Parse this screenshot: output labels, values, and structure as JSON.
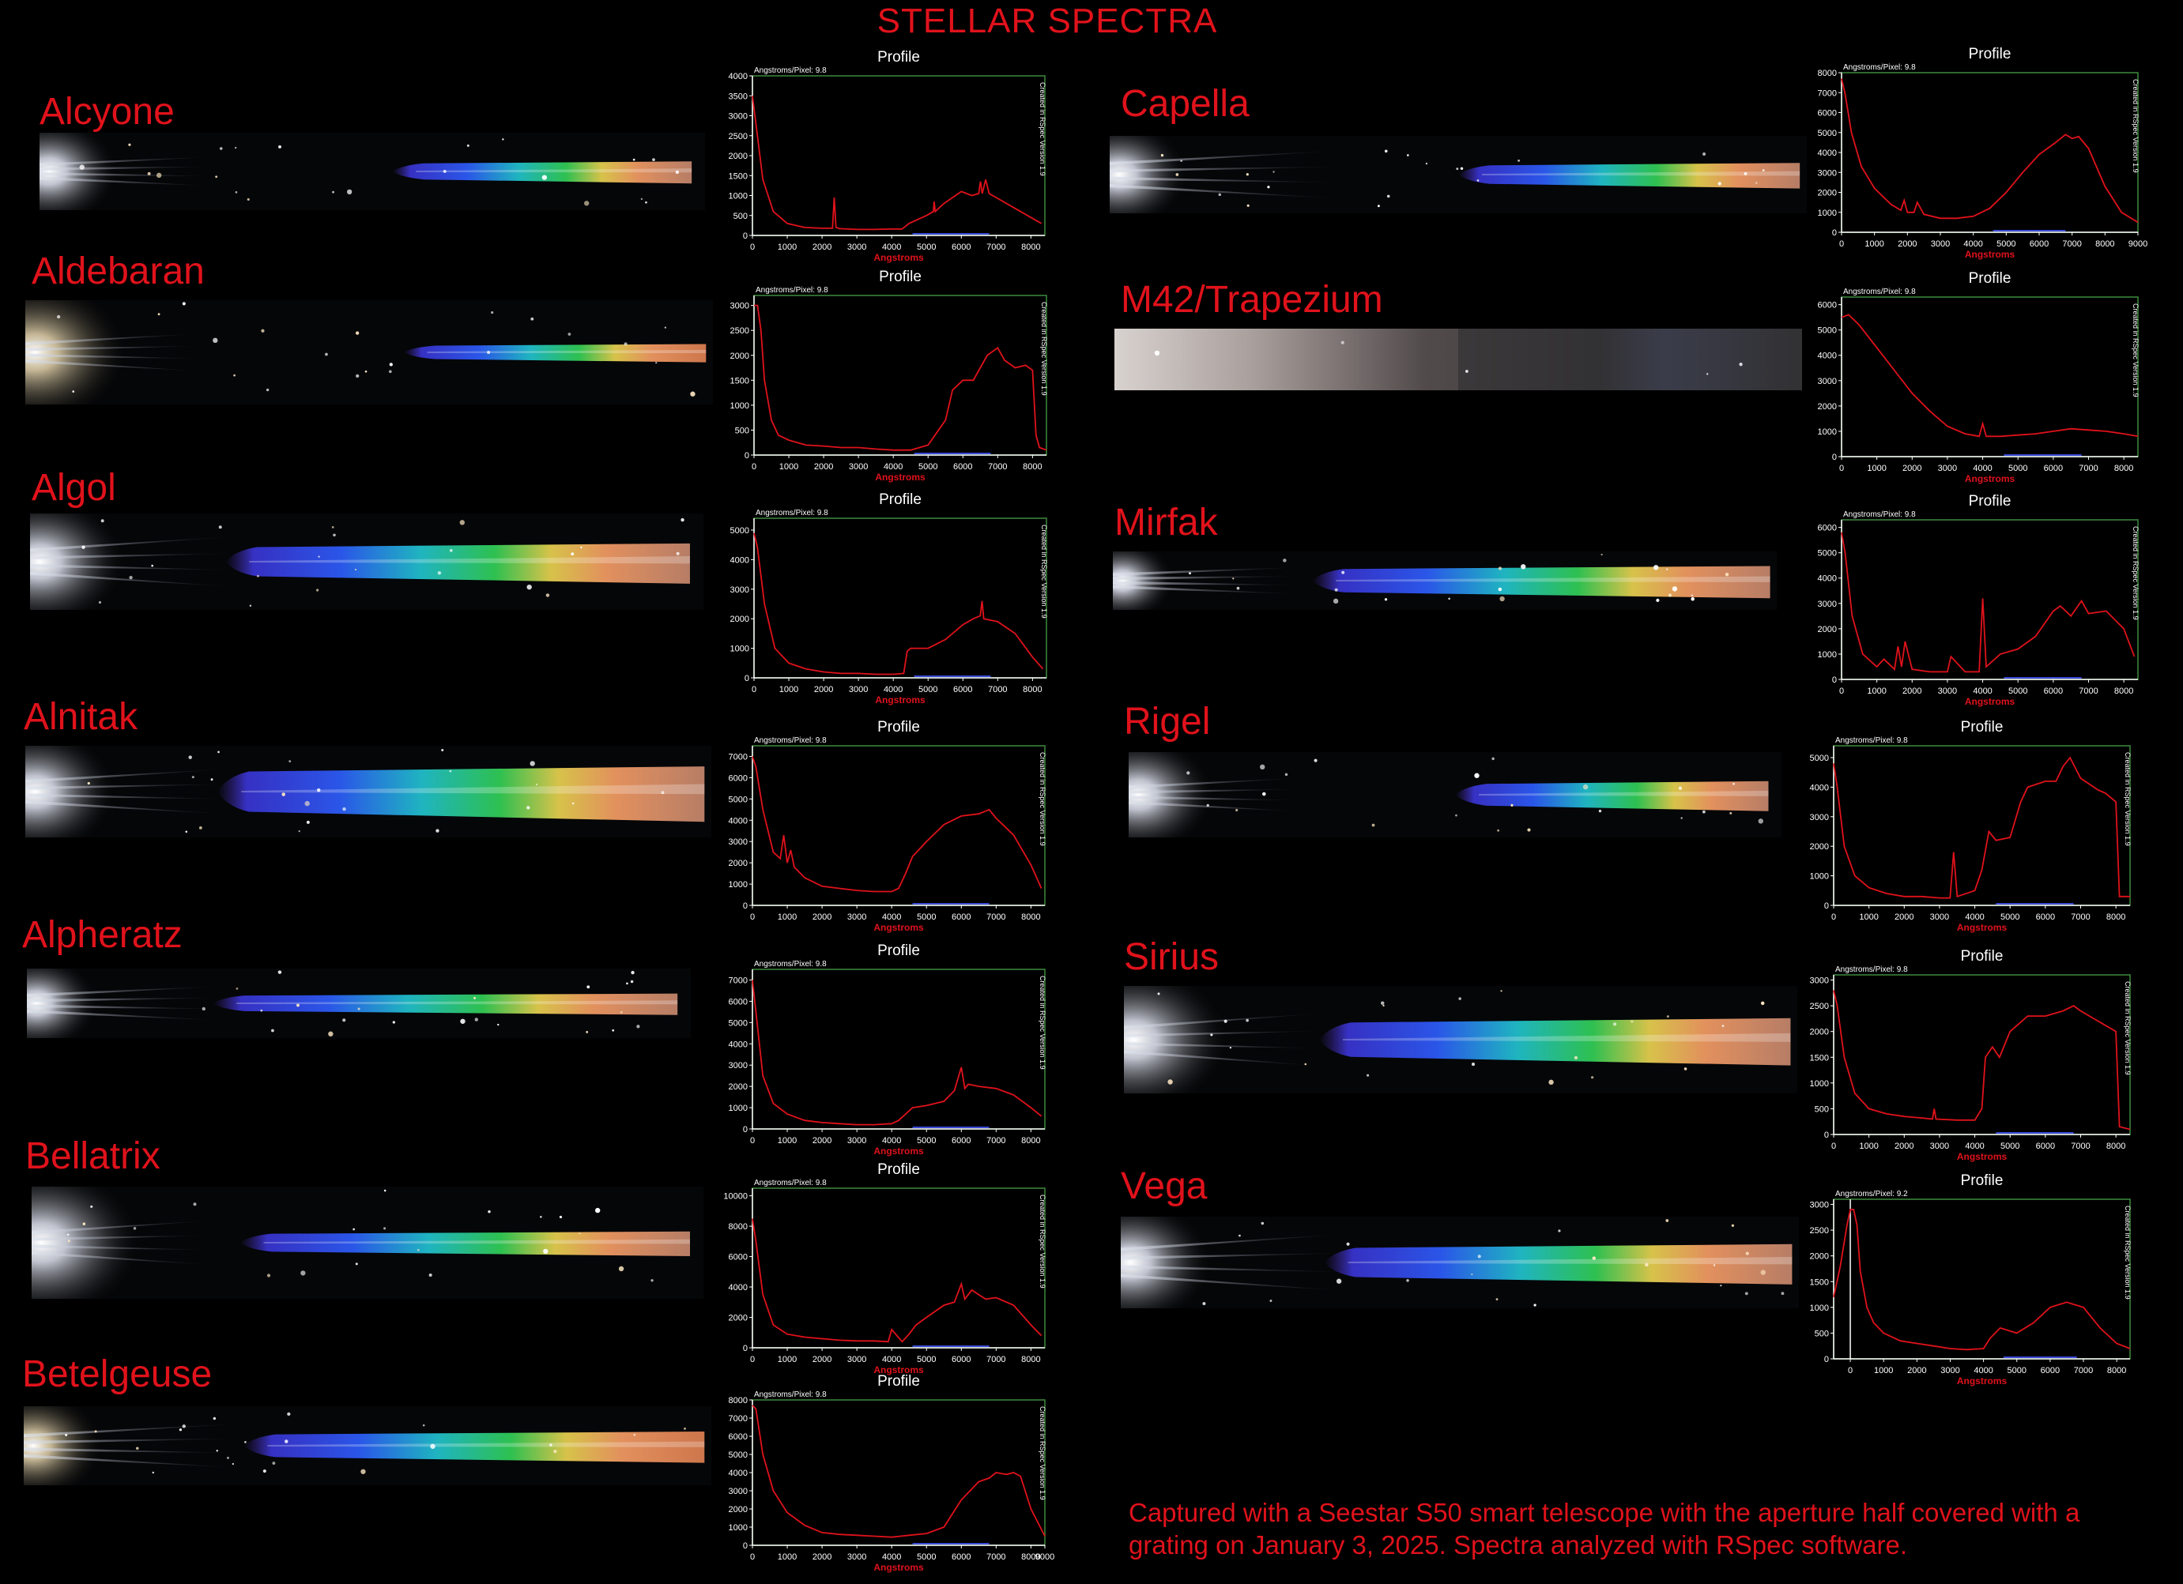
{
  "title": "STELLAR SPECTRA",
  "footer": "Captured with a Seestar S50 smart telescope with the aperture half covered with a grating on January 3, 2025. Spectra analyzed with RSpec software.",
  "colors": {
    "accent": "#e0121b",
    "trace": "#e0121b",
    "frame": "#3d8a3d",
    "axis": "#ffffff"
  },
  "profile_labels": {
    "heading": "Profile",
    "xlabel": "Angstroms",
    "side_note": "Created in RSpec Version 1.9"
  },
  "chart_data": [
    {
      "type": "line",
      "name": "Alcyone",
      "ap": "Angstroms/Pixel: 9.8",
      "xlim": [
        0,
        8400
      ],
      "xticks": [
        0,
        1000,
        2000,
        3000,
        4000,
        5000,
        6000,
        7000,
        8000
      ],
      "ylim": [
        0,
        4000
      ],
      "yticks": [
        0,
        500,
        1000,
        1500,
        2000,
        2500,
        3000,
        3500,
        4000
      ],
      "x": [
        0,
        100,
        300,
        600,
        1000,
        1500,
        2000,
        2300,
        2350,
        2400,
        2500,
        3000,
        3500,
        4000,
        4300,
        4500,
        5000,
        5200,
        5220,
        5250,
        5500,
        6000,
        6300,
        6500,
        6550,
        6600,
        6700,
        6800,
        7000,
        7500,
        8000,
        8300
      ],
      "y": [
        3500,
        2800,
        1400,
        600,
        300,
        200,
        180,
        180,
        950,
        200,
        170,
        150,
        150,
        160,
        160,
        300,
        500,
        600,
        850,
        600,
        800,
        1100,
        1000,
        1050,
        1350,
        1050,
        1400,
        1050,
        950,
        700,
        450,
        300
      ]
    },
    {
      "type": "line",
      "name": "Aldebaran",
      "ap": "Angstroms/Pixel: 9.8",
      "xlim": [
        0,
        8400
      ],
      "xticks": [
        0,
        1000,
        2000,
        3000,
        4000,
        5000,
        6000,
        7000,
        8000
      ],
      "ylim": [
        0,
        3200
      ],
      "yticks": [
        0,
        500,
        1000,
        1500,
        2000,
        2500,
        3000
      ],
      "x": [
        0,
        100,
        200,
        300,
        500,
        700,
        1000,
        1500,
        2000,
        2500,
        3000,
        3500,
        4000,
        4500,
        5000,
        5200,
        5500,
        5700,
        6000,
        6300,
        6500,
        6700,
        7000,
        7200,
        7500,
        7800,
        8000,
        8100,
        8200,
        8400
      ],
      "y": [
        3000,
        3000,
        2500,
        1500,
        700,
        400,
        300,
        200,
        180,
        150,
        150,
        120,
        100,
        100,
        200,
        400,
        700,
        1300,
        1500,
        1500,
        1750,
        2000,
        2150,
        1900,
        1750,
        1800,
        1700,
        400,
        150,
        100
      ]
    },
    {
      "type": "line",
      "name": "Algol",
      "ap": "Angstroms/Pixel: 9.8",
      "xlim": [
        0,
        8400
      ],
      "xticks": [
        0,
        1000,
        2000,
        3000,
        4000,
        5000,
        6000,
        7000,
        8000
      ],
      "ylim": [
        0,
        5400
      ],
      "yticks": [
        0,
        1000,
        2000,
        3000,
        4000,
        5000
      ],
      "x": [
        0,
        100,
        300,
        600,
        1000,
        1500,
        2000,
        2500,
        3000,
        3500,
        4000,
        4300,
        4400,
        4500,
        5000,
        5500,
        6000,
        6300,
        6500,
        6550,
        6600,
        7000,
        7500,
        8000,
        8300
      ],
      "y": [
        4900,
        4400,
        2500,
        1000,
        500,
        300,
        200,
        150,
        150,
        120,
        120,
        150,
        900,
        1000,
        1000,
        1300,
        1800,
        2000,
        2100,
        2600,
        2000,
        1900,
        1500,
        700,
        300
      ]
    },
    {
      "type": "line",
      "name": "Alnitak",
      "ap": "Angstroms/Pixel: 9.8",
      "xlim": [
        0,
        8400
      ],
      "xticks": [
        0,
        1000,
        2000,
        3000,
        4000,
        5000,
        6000,
        7000,
        8000
      ],
      "ylim": [
        0,
        7500
      ],
      "yticks": [
        0,
        1000,
        2000,
        3000,
        4000,
        5000,
        6000,
        7000
      ],
      "x": [
        0,
        100,
        300,
        600,
        800,
        900,
        1000,
        1100,
        1200,
        1500,
        2000,
        2500,
        3000,
        3500,
        4000,
        4200,
        4400,
        4600,
        5000,
        5500,
        6000,
        6500,
        6800,
        7000,
        7500,
        8000,
        8300
      ],
      "y": [
        7000,
        6500,
        4500,
        2500,
        2200,
        3300,
        2000,
        2600,
        1800,
        1300,
        900,
        800,
        700,
        650,
        650,
        800,
        1500,
        2300,
        3000,
        3800,
        4200,
        4300,
        4500,
        4100,
        3300,
        1900,
        800
      ]
    },
    {
      "type": "line",
      "name": "Alpheratz",
      "ap": "Angstroms/Pixel: 9.8",
      "xlim": [
        0,
        8400
      ],
      "xticks": [
        0,
        1000,
        2000,
        3000,
        4000,
        5000,
        6000,
        7000,
        8000
      ],
      "ylim": [
        0,
        7500
      ],
      "yticks": [
        0,
        1000,
        2000,
        3000,
        4000,
        5000,
        6000,
        7000
      ],
      "x": [
        0,
        100,
        300,
        600,
        1000,
        1500,
        2000,
        2500,
        3000,
        3500,
        4000,
        4200,
        4400,
        4600,
        5000,
        5500,
        5800,
        6000,
        6100,
        6200,
        6500,
        7000,
        7500,
        8000,
        8300
      ],
      "y": [
        7000,
        5500,
        2500,
        1200,
        700,
        400,
        300,
        250,
        200,
        200,
        250,
        400,
        700,
        1000,
        1100,
        1300,
        1800,
        2900,
        1900,
        2100,
        2000,
        1900,
        1600,
        1000,
        600
      ]
    },
    {
      "type": "line",
      "name": "Bellatrix",
      "ap": "Angstroms/Pixel: 9.8",
      "xlim": [
        0,
        8400
      ],
      "xticks": [
        0,
        1000,
        2000,
        3000,
        4000,
        5000,
        6000,
        7000,
        8000
      ],
      "ylim": [
        0,
        10500
      ],
      "yticks": [
        0,
        2000,
        4000,
        6000,
        8000,
        10000
      ],
      "x": [
        0,
        100,
        300,
        600,
        1000,
        1500,
        2000,
        2500,
        3000,
        3500,
        3900,
        4000,
        4300,
        4500,
        4700,
        5000,
        5500,
        5800,
        6000,
        6100,
        6300,
        6500,
        6700,
        7000,
        7500,
        8000,
        8300
      ],
      "y": [
        8500,
        7000,
        3500,
        1500,
        900,
        700,
        600,
        500,
        450,
        450,
        400,
        1200,
        400,
        900,
        1500,
        2000,
        2800,
        3000,
        4200,
        3200,
        3800,
        3500,
        3200,
        3300,
        2800,
        1500,
        800
      ]
    },
    {
      "type": "line",
      "name": "Betelgeuse",
      "ap": "Angstroms/Pixel: 9.8",
      "xlim": [
        0,
        8400
      ],
      "xticks": [
        0,
        1000,
        2000,
        3000,
        4000,
        5000,
        6000,
        7000,
        8000,
        9000
      ],
      "ylim": [
        0,
        8000
      ],
      "yticks": [
        0,
        1000,
        2000,
        3000,
        4000,
        5000,
        6000,
        7000,
        8000
      ],
      "x": [
        0,
        100,
        300,
        600,
        1000,
        1500,
        2000,
        2500,
        3000,
        3500,
        4000,
        4500,
        5000,
        5500,
        6000,
        6500,
        6800,
        7000,
        7300,
        7500,
        7700,
        8000,
        8400
      ],
      "y": [
        7700,
        7500,
        5000,
        3000,
        1800,
        1100,
        700,
        600,
        550,
        500,
        450,
        550,
        650,
        1000,
        2500,
        3500,
        3700,
        4000,
        3900,
        4000,
        3800,
        2000,
        500
      ]
    },
    {
      "type": "line",
      "name": "Capella",
      "ap": "Angstroms/Pixel: 9.8",
      "xlim": [
        0,
        9000
      ],
      "xticks": [
        0,
        1000,
        2000,
        3000,
        4000,
        5000,
        6000,
        7000,
        8000,
        9000
      ],
      "ylim": [
        0,
        8000
      ],
      "yticks": [
        0,
        1000,
        2000,
        3000,
        4000,
        5000,
        6000,
        7000,
        8000
      ],
      "x": [
        0,
        100,
        300,
        600,
        1000,
        1500,
        1800,
        1900,
        2000,
        2200,
        2300,
        2500,
        3000,
        3500,
        4000,
        4500,
        5000,
        5500,
        6000,
        6500,
        6800,
        7000,
        7200,
        7500,
        8000,
        8500,
        9000
      ],
      "y": [
        7700,
        7000,
        5000,
        3300,
        2200,
        1400,
        1100,
        1600,
        1000,
        1000,
        1500,
        900,
        700,
        700,
        800,
        1200,
        2000,
        3000,
        3900,
        4500,
        4900,
        4700,
        4800,
        4200,
        2300,
        1000,
        500
      ]
    },
    {
      "type": "line",
      "name": "M42/Trapezium",
      "ap": "Angstroms/Pixel: 9.8",
      "xlim": [
        0,
        8400
      ],
      "xticks": [
        0,
        1000,
        2000,
        3000,
        4000,
        5000,
        6000,
        7000,
        8000
      ],
      "ylim": [
        0,
        6300
      ],
      "yticks": [
        0,
        1000,
        2000,
        3000,
        4000,
        5000,
        6000
      ],
      "x": [
        0,
        200,
        500,
        1000,
        1500,
        2000,
        2500,
        3000,
        3500,
        3900,
        4000,
        4100,
        4500,
        5000,
        5500,
        6000,
        6500,
        7000,
        7500,
        8000,
        8400
      ],
      "y": [
        5500,
        5600,
        5200,
        4300,
        3400,
        2500,
        1800,
        1200,
        900,
        800,
        1300,
        800,
        800,
        850,
        900,
        1000,
        1100,
        1050,
        1000,
        900,
        800
      ]
    },
    {
      "type": "line",
      "name": "Mirfak",
      "ap": "Angstroms/Pixel: 9.8",
      "xlim": [
        0,
        8400
      ],
      "xticks": [
        0,
        1000,
        2000,
        3000,
        4000,
        5000,
        6000,
        7000,
        8000
      ],
      "ylim": [
        0,
        6300
      ],
      "yticks": [
        0,
        1000,
        2000,
        3000,
        4000,
        5000,
        6000
      ],
      "x": [
        0,
        100,
        300,
        600,
        1000,
        1200,
        1500,
        1600,
        1700,
        1800,
        2000,
        2500,
        3000,
        3100,
        3500,
        3900,
        4000,
        4100,
        4500,
        5000,
        5500,
        6000,
        6200,
        6500,
        6800,
        7000,
        7500,
        8000,
        8300
      ],
      "y": [
        5800,
        5000,
        2500,
        1000,
        500,
        800,
        400,
        1300,
        500,
        1500,
        400,
        300,
        300,
        900,
        300,
        300,
        3200,
        500,
        1000,
        1200,
        1700,
        2700,
        2900,
        2500,
        3100,
        2600,
        2700,
        2000,
        900
      ]
    },
    {
      "type": "line",
      "name": "Rigel",
      "ap": "Angstroms/Pixel: 9.8",
      "xlim": [
        0,
        8400
      ],
      "xticks": [
        0,
        1000,
        2000,
        3000,
        4000,
        5000,
        6000,
        7000,
        8000
      ],
      "ylim": [
        0,
        5400
      ],
      "yticks": [
        0,
        1000,
        2000,
        3000,
        4000,
        5000
      ],
      "x": [
        0,
        100,
        300,
        600,
        1000,
        1500,
        2000,
        2500,
        3000,
        3300,
        3400,
        3500,
        4000,
        4200,
        4400,
        4600,
        5000,
        5300,
        5500,
        6000,
        6300,
        6500,
        6700,
        7000,
        7500,
        7700,
        8000,
        8100,
        8400
      ],
      "y": [
        4800,
        4000,
        2000,
        1000,
        600,
        400,
        300,
        300,
        250,
        250,
        1800,
        300,
        500,
        1200,
        2500,
        2200,
        2300,
        3500,
        4000,
        4200,
        4200,
        4700,
        5000,
        4300,
        3900,
        3800,
        3500,
        300,
        300
      ]
    },
    {
      "type": "line",
      "name": "Sirius",
      "ap": "Angstroms/Pixel: 9.8",
      "xlim": [
        0,
        8400
      ],
      "xticks": [
        0,
        1000,
        2000,
        3000,
        4000,
        5000,
        6000,
        7000,
        8000
      ],
      "ylim": [
        0,
        3100
      ],
      "yticks": [
        0,
        500,
        1000,
        1500,
        2000,
        2500,
        3000
      ],
      "x": [
        0,
        100,
        300,
        600,
        1000,
        1500,
        2000,
        2500,
        2800,
        2850,
        2900,
        3500,
        4000,
        4200,
        4300,
        4500,
        4700,
        5000,
        5500,
        6000,
        6500,
        6800,
        7000,
        7500,
        8000,
        8100,
        8400
      ],
      "y": [
        2800,
        2500,
        1500,
        800,
        500,
        400,
        350,
        320,
        300,
        500,
        300,
        280,
        280,
        500,
        1500,
        1700,
        1500,
        2000,
        2300,
        2300,
        2400,
        2500,
        2400,
        2200,
        2000,
        150,
        100
      ]
    },
    {
      "type": "line",
      "name": "Vega",
      "ap": "Angstroms/Pixel: 9.2",
      "xlim": [
        -500,
        8400
      ],
      "xticks": [
        0,
        1000,
        2000,
        3000,
        4000,
        5000,
        6000,
        7000,
        8000
      ],
      "ylim": [
        0,
        3100
      ],
      "yticks": [
        0,
        500,
        1000,
        1500,
        2000,
        2500,
        3000
      ],
      "x": [
        -500,
        -300,
        -100,
        0,
        100,
        200,
        300,
        500,
        700,
        1000,
        1500,
        2000,
        2500,
        3000,
        3500,
        4000,
        4200,
        4500,
        5000,
        5500,
        6000,
        6500,
        7000,
        7500,
        8000,
        8400
      ],
      "y": [
        1200,
        1800,
        2600,
        2900,
        2900,
        2600,
        1700,
        1000,
        700,
        500,
        350,
        300,
        250,
        200,
        180,
        200,
        400,
        600,
        500,
        700,
        1000,
        1100,
        1000,
        600,
        300,
        200
      ]
    }
  ]
}
